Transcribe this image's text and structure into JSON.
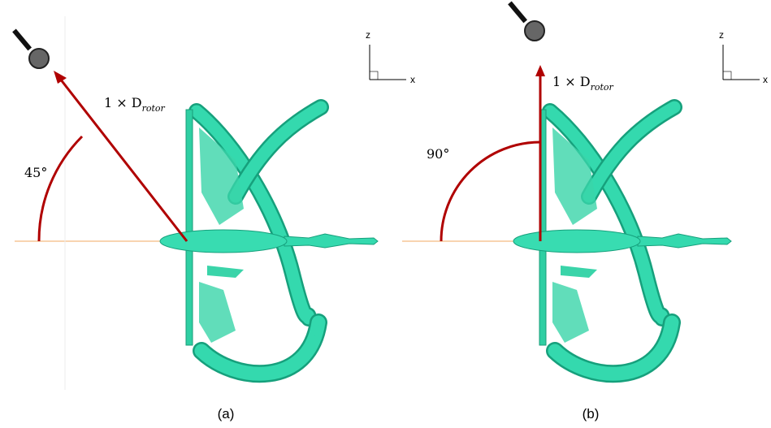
{
  "panels": [
    {
      "angle_label": "45°",
      "distance_label": {
        "main": "1 × D",
        "subscript": "rotor"
      },
      "axes": {
        "vertical": "z",
        "horizontal": "x"
      },
      "caption": "(a)"
    },
    {
      "angle_label": "90°",
      "distance_label": {
        "main": "1 × D",
        "subscript": "rotor"
      },
      "axes": {
        "vertical": "z",
        "horizontal": "x"
      },
      "caption": "(b)"
    }
  ]
}
